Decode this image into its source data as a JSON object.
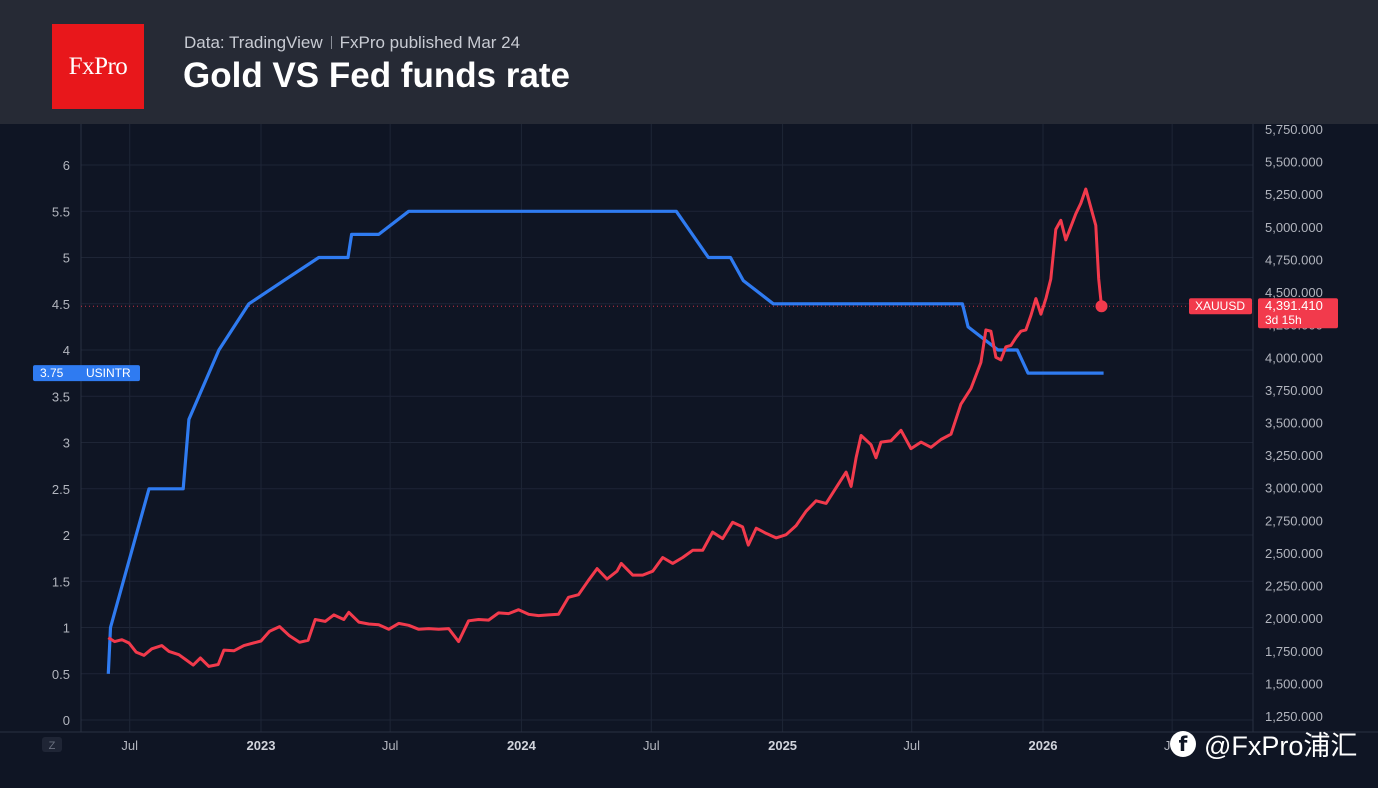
{
  "header": {
    "logo_text": "FxPro",
    "source": "Data: TradingView",
    "published": "FxPro published Mar 24",
    "title": "Gold VS Fed funds rate"
  },
  "watermark": "@FxPro浦汇",
  "colors": {
    "background": "#0f1524",
    "header_bg": "#262a35",
    "logo_bg": "#e8171b",
    "rate_line": "#2f7bf1",
    "gold_line": "#f23a4c",
    "grid": "#1e2536",
    "axis_text": "#b2b5be"
  },
  "chart_data": {
    "type": "line",
    "title": "Gold VS Fed funds rate",
    "x_axis": {
      "range": [
        "2022-06-01",
        "2026-07-15"
      ],
      "tick_labels": [
        {
          "date": "2022-07-01",
          "label": "Jul",
          "bold": false
        },
        {
          "date": "2023-01-01",
          "label": "2023",
          "bold": true
        },
        {
          "date": "2023-07-01",
          "label": "Jul",
          "bold": false
        },
        {
          "date": "2024-01-01",
          "label": "2024",
          "bold": true
        },
        {
          "date": "2024-07-01",
          "label": "Jul",
          "bold": false
        },
        {
          "date": "2025-01-01",
          "label": "2025",
          "bold": true
        },
        {
          "date": "2025-07-01",
          "label": "Jul",
          "bold": false
        },
        {
          "date": "2026-01-01",
          "label": "2026",
          "bold": true
        },
        {
          "date": "2026-07-01",
          "label": "Jul",
          "bold": false
        }
      ],
      "zoom_button": "Z"
    },
    "left_axis": {
      "range": [
        0,
        6.3
      ],
      "ticks": [
        "0",
        "0.5",
        "1",
        "1.5",
        "2",
        "2.5",
        "3",
        "3.5",
        "4",
        "4.5",
        "5",
        "5.5",
        "6"
      ]
    },
    "right_axis": {
      "range": [
        1150,
        5750
      ],
      "ticks": [
        "1,250.000",
        "1,500.000",
        "1,750.000",
        "2,000.000",
        "2,250.000",
        "2,500.000",
        "2,750.000",
        "3,000.000",
        "3,250.000",
        "3,500.000",
        "3,750.000",
        "4,000.000",
        "4,250.000",
        "4,500.000",
        "4,750.000",
        "5,000.000",
        "5,250.000",
        "5,500.000",
        "5,750.000"
      ]
    },
    "series": [
      {
        "name": "USINTR",
        "axis": "left",
        "last_value_label": "3.75",
        "points": [
          [
            "2022-06-01",
            0.5
          ],
          [
            "2022-06-04",
            1.0
          ],
          [
            "2022-07-28",
            2.5
          ],
          [
            "2022-09-14",
            2.5
          ],
          [
            "2022-09-22",
            3.25
          ],
          [
            "2022-11-03",
            4.0
          ],
          [
            "2022-12-15",
            4.5
          ],
          [
            "2023-02-02",
            4.75
          ],
          [
            "2023-03-23",
            5.0
          ],
          [
            "2023-05-03",
            5.0
          ],
          [
            "2023-05-08",
            5.25
          ],
          [
            "2023-06-15",
            5.25
          ],
          [
            "2023-07-27",
            5.5
          ],
          [
            "2024-08-05",
            5.5
          ],
          [
            "2024-09-19",
            5.0
          ],
          [
            "2024-10-20",
            5.0
          ],
          [
            "2024-11-07",
            4.75
          ],
          [
            "2024-12-19",
            4.5
          ],
          [
            "2025-09-10",
            4.5
          ],
          [
            "2025-09-18",
            4.25
          ],
          [
            "2025-10-30",
            4.0
          ],
          [
            "2025-11-26",
            4.0
          ],
          [
            "2025-12-11",
            3.75
          ],
          [
            "2026-03-27",
            3.75
          ]
        ]
      },
      {
        "name": "XAUUSD",
        "axis": "right",
        "last_value_label": "4,391.410",
        "price_tag_label": "XAUUSD",
        "countdown": "3d 15h",
        "points": [
          [
            "2022-06-01",
            1850
          ],
          [
            "2022-06-10",
            1820
          ],
          [
            "2022-06-20",
            1835
          ],
          [
            "2022-06-30",
            1810
          ],
          [
            "2022-07-10",
            1740
          ],
          [
            "2022-07-21",
            1715
          ],
          [
            "2022-08-01",
            1765
          ],
          [
            "2022-08-15",
            1790
          ],
          [
            "2022-08-25",
            1745
          ],
          [
            "2022-09-08",
            1720
          ],
          [
            "2022-09-18",
            1680
          ],
          [
            "2022-09-28",
            1640
          ],
          [
            "2022-10-08",
            1695
          ],
          [
            "2022-10-20",
            1630
          ],
          [
            "2022-11-02",
            1645
          ],
          [
            "2022-11-10",
            1755
          ],
          [
            "2022-11-24",
            1750
          ],
          [
            "2022-12-08",
            1790
          ],
          [
            "2023-01-01",
            1825
          ],
          [
            "2023-01-13",
            1900
          ],
          [
            "2023-01-27",
            1935
          ],
          [
            "2023-02-10",
            1865
          ],
          [
            "2023-02-24",
            1815
          ],
          [
            "2023-03-08",
            1830
          ],
          [
            "2023-03-18",
            1990
          ],
          [
            "2023-04-01",
            1975
          ],
          [
            "2023-04-13",
            2025
          ],
          [
            "2023-04-27",
            1990
          ],
          [
            "2023-05-04",
            2045
          ],
          [
            "2023-05-18",
            1970
          ],
          [
            "2023-06-01",
            1955
          ],
          [
            "2023-06-15",
            1950
          ],
          [
            "2023-06-29",
            1915
          ],
          [
            "2023-07-13",
            1960
          ],
          [
            "2023-07-27",
            1945
          ],
          [
            "2023-08-10",
            1915
          ],
          [
            "2023-08-24",
            1920
          ],
          [
            "2023-09-07",
            1915
          ],
          [
            "2023-09-21",
            1920
          ],
          [
            "2023-10-05",
            1820
          ],
          [
            "2023-10-19",
            1980
          ],
          [
            "2023-11-02",
            1990
          ],
          [
            "2023-11-16",
            1985
          ],
          [
            "2023-11-30",
            2040
          ],
          [
            "2023-12-14",
            2035
          ],
          [
            "2023-12-28",
            2065
          ],
          [
            "2024-01-11",
            2030
          ],
          [
            "2024-01-25",
            2020
          ],
          [
            "2024-02-08",
            2025
          ],
          [
            "2024-02-22",
            2030
          ],
          [
            "2024-03-07",
            2160
          ],
          [
            "2024-03-21",
            2180
          ],
          [
            "2024-04-04",
            2290
          ],
          [
            "2024-04-16",
            2380
          ],
          [
            "2024-04-30",
            2300
          ],
          [
            "2024-05-14",
            2360
          ],
          [
            "2024-05-20",
            2420
          ],
          [
            "2024-06-05",
            2330
          ],
          [
            "2024-06-19",
            2330
          ],
          [
            "2024-07-03",
            2360
          ],
          [
            "2024-07-17",
            2465
          ],
          [
            "2024-07-31",
            2420
          ],
          [
            "2024-08-14",
            2465
          ],
          [
            "2024-08-28",
            2520
          ],
          [
            "2024-09-11",
            2520
          ],
          [
            "2024-09-25",
            2660
          ],
          [
            "2024-10-09",
            2610
          ],
          [
            "2024-10-23",
            2735
          ],
          [
            "2024-11-06",
            2700
          ],
          [
            "2024-11-14",
            2560
          ],
          [
            "2024-11-25",
            2690
          ],
          [
            "2024-12-09",
            2650
          ],
          [
            "2024-12-23",
            2615
          ],
          [
            "2025-01-06",
            2640
          ],
          [
            "2025-01-20",
            2710
          ],
          [
            "2025-02-03",
            2820
          ],
          [
            "2025-02-17",
            2900
          ],
          [
            "2025-03-03",
            2880
          ],
          [
            "2025-03-17",
            3000
          ],
          [
            "2025-03-31",
            3120
          ],
          [
            "2025-04-07",
            3010
          ],
          [
            "2025-04-14",
            3230
          ],
          [
            "2025-04-21",
            3400
          ],
          [
            "2025-05-05",
            3330
          ],
          [
            "2025-05-12",
            3230
          ],
          [
            "2025-05-19",
            3350
          ],
          [
            "2025-06-02",
            3360
          ],
          [
            "2025-06-16",
            3440
          ],
          [
            "2025-06-30",
            3300
          ],
          [
            "2025-07-14",
            3350
          ],
          [
            "2025-07-28",
            3310
          ],
          [
            "2025-08-11",
            3370
          ],
          [
            "2025-08-25",
            3410
          ],
          [
            "2025-09-08",
            3640
          ],
          [
            "2025-09-22",
            3760
          ],
          [
            "2025-10-06",
            3960
          ],
          [
            "2025-10-13",
            4210
          ],
          [
            "2025-10-20",
            4200
          ],
          [
            "2025-10-27",
            4000
          ],
          [
            "2025-11-03",
            3980
          ],
          [
            "2025-11-10",
            4080
          ],
          [
            "2025-11-17",
            4090
          ],
          [
            "2025-11-24",
            4150
          ],
          [
            "2025-12-01",
            4200
          ],
          [
            "2025-12-08",
            4210
          ],
          [
            "2025-12-15",
            4320
          ],
          [
            "2025-12-22",
            4450
          ],
          [
            "2025-12-29",
            4330
          ],
          [
            "2026-01-05",
            4450
          ],
          [
            "2026-01-12",
            4600
          ],
          [
            "2026-01-19",
            4980
          ],
          [
            "2026-01-26",
            5050
          ],
          [
            "2026-02-02",
            4900
          ],
          [
            "2026-02-09",
            5000
          ],
          [
            "2026-02-16",
            5100
          ],
          [
            "2026-02-23",
            5180
          ],
          [
            "2026-03-02",
            5290
          ],
          [
            "2026-03-09",
            5150
          ],
          [
            "2026-03-16",
            5010
          ],
          [
            "2026-03-20",
            4600
          ],
          [
            "2026-03-24",
            4391.41
          ]
        ]
      }
    ]
  }
}
